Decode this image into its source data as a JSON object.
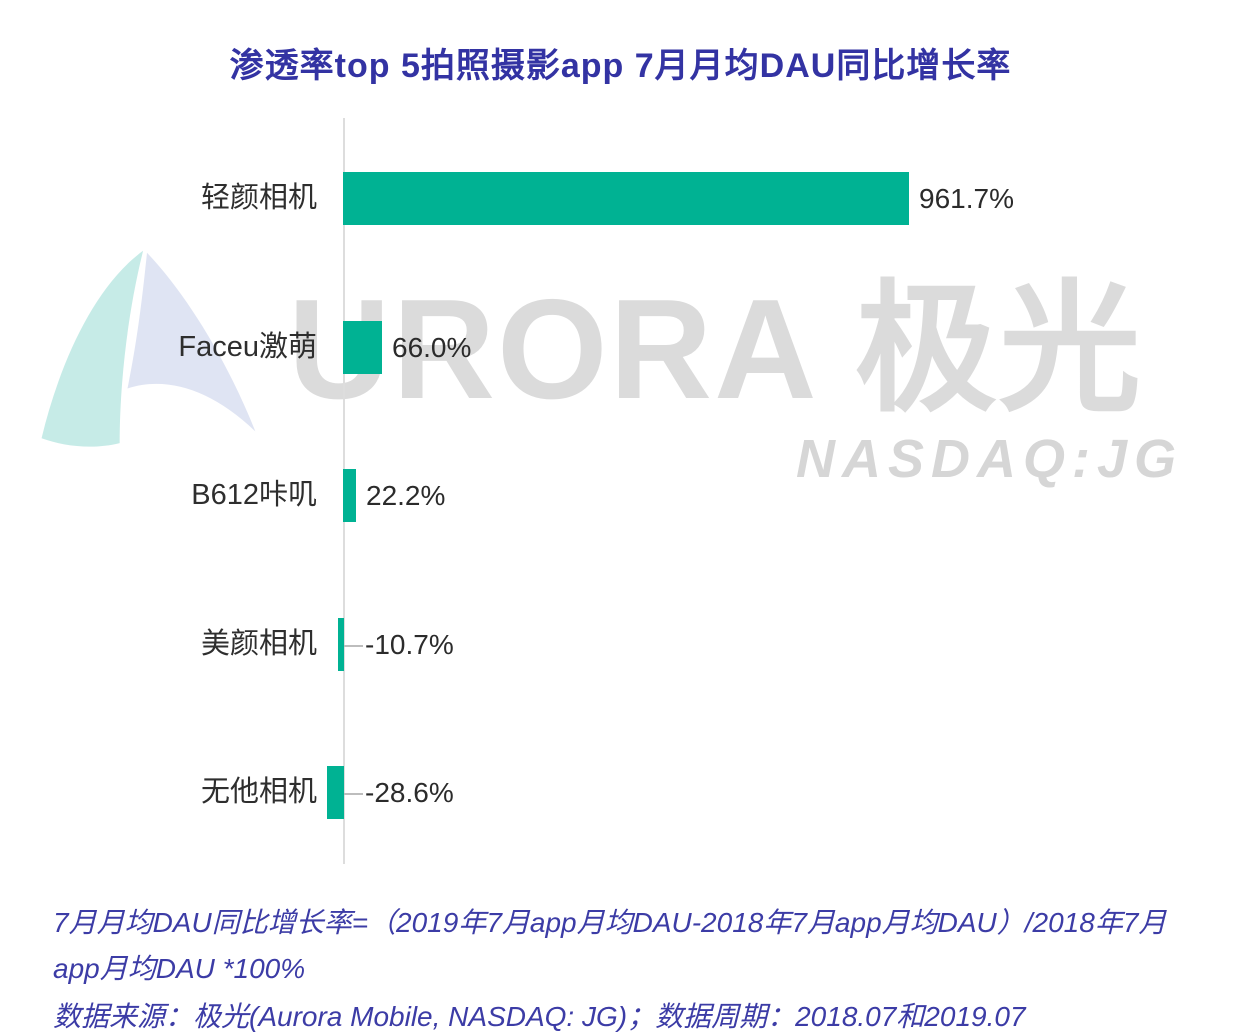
{
  "title": "渗透率top 5拍照摄影app 7月月均DAU同比增长率",
  "watermark": {
    "logo_icon": "aurora-swoosh-logo",
    "brand_text": "URORA 极光",
    "ticker": "NASDAQ:JG"
  },
  "chart_data": {
    "type": "bar",
    "orientation": "horizontal",
    "title": "渗透率top 5拍照摄影app 7月月均DAU同比增长率",
    "categories": [
      "轻颜相机",
      "Faceu激萌",
      "B612咔叽",
      "美颜相机",
      "无他相机"
    ],
    "values": [
      961.7,
      66.0,
      22.2,
      -10.7,
      -28.6
    ],
    "value_labels": [
      "961.7%",
      "66.0%",
      "22.2%",
      "-10.7%",
      "-28.6%"
    ],
    "unit": "%",
    "xlabel": "",
    "ylabel": "",
    "xlim": [
      -30,
      1000
    ],
    "grid": false,
    "legend": false,
    "bar_color": "#00b293",
    "baseline": "vertical zero-axis line, negative bars extend left with gray callout line to label"
  },
  "footnotes": {
    "formula": "7月月均DAU同比增长率=（2019年7月app月均DAU-2018年7月app月均DAU）/2018年7月app月均DAU *100%",
    "source": "数据来源：极光(Aurora Mobile, NASDAQ: JG)；数据周期：2018.07和2019.07"
  },
  "colors": {
    "bar": "#00b293",
    "title_text": "#3333a3",
    "footnote_text": "#3c3ca6",
    "label_text": "#2e2e2e",
    "axis_line": "#dddddd",
    "watermark_text": "#dbdbdb",
    "logo_teal": "#8ed8d0",
    "logo_lavender": "#b9c4e4"
  }
}
